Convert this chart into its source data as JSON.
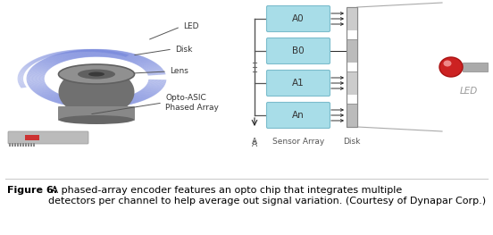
{
  "background_color": "#ffffff",
  "figure_width": 5.52,
  "figure_height": 2.63,
  "caption_bold": "Figure 6:",
  "caption_normal": " A phased-array encoder features an opto chip that integrates multiple\ndetectors per channel to help average out signal variation. (Courtesy of Dynapar Corp.)",
  "caption_fontsize": 8.0,
  "box_color": "#a8dde8",
  "box_edge_color": "#7bbccc",
  "box_labels": [
    "A0",
    "B0",
    "A1",
    "An"
  ],
  "label_color": "#444444",
  "disk_color": "#cccccc",
  "disk_slot_color": "#aaaaaa",
  "arrow_color": "#222222",
  "connector_color": "#555555",
  "led_red": "#cc2222",
  "led_highlight": "#ee6666",
  "led_body_color": "#aaaaaa",
  "led_label_color": "#888888",
  "divider_line_color": "#cccccc",
  "blue_coil": "#7788dd",
  "encoder_body": "#707070",
  "encoder_top": "#909090",
  "encoder_ring": "#555555",
  "encoder_base": "#aaaaaa",
  "cable_color": "#bbbbbb",
  "chip_red": "#cc3333"
}
